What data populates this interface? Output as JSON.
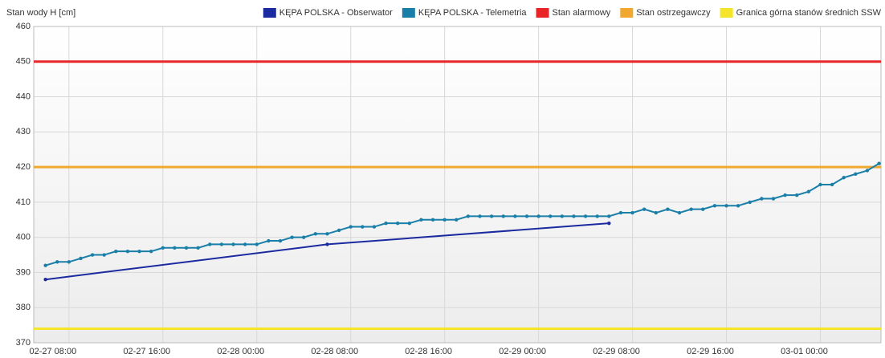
{
  "chart_data": {
    "type": "line",
    "y_label": "Stan wody H [cm]",
    "ylim": [
      370,
      460
    ],
    "yticks": [
      370,
      380,
      390,
      400,
      410,
      420,
      430,
      440,
      450,
      460
    ],
    "xlim": [
      "02-27 05:00",
      "03-01 05:10"
    ],
    "xticks": [
      "02-27 08:00",
      "02-27 16:00",
      "02-28 00:00",
      "02-28 08:00",
      "02-28 16:00",
      "02-29 00:00",
      "02-29 08:00",
      "02-29 16:00",
      "03-01 00:00"
    ],
    "grid": true,
    "legend": "top-right",
    "series": [
      {
        "name": "KĘPA POLSKA - Obserwator",
        "color": "#1c2aa0",
        "x": [
          "02-27 06:00",
          "02-28 06:00",
          "02-29 06:00"
        ],
        "values": [
          388,
          398,
          404
        ]
      },
      {
        "name": "KĘPA POLSKA - Telemetria",
        "color": "#1a7fa8",
        "x": [
          "02-27 06:00",
          "02-27 07:00",
          "02-27 08:00",
          "02-27 09:00",
          "02-27 10:00",
          "02-27 11:00",
          "02-27 12:00",
          "02-27 13:00",
          "02-27 14:00",
          "02-27 15:00",
          "02-27 16:00",
          "02-27 17:00",
          "02-27 18:00",
          "02-27 19:00",
          "02-27 20:00",
          "02-27 21:00",
          "02-27 22:00",
          "02-27 23:00",
          "02-28 00:00",
          "02-28 01:00",
          "02-28 02:00",
          "02-28 03:00",
          "02-28 04:00",
          "02-28 05:00",
          "02-28 06:00",
          "02-28 07:00",
          "02-28 08:00",
          "02-28 09:00",
          "02-28 10:00",
          "02-28 11:00",
          "02-28 12:00",
          "02-28 13:00",
          "02-28 14:00",
          "02-28 15:00",
          "02-28 16:00",
          "02-28 17:00",
          "02-28 18:00",
          "02-28 19:00",
          "02-28 20:00",
          "02-28 21:00",
          "02-28 22:00",
          "02-28 23:00",
          "02-29 00:00",
          "02-29 01:00",
          "02-29 02:00",
          "02-29 03:00",
          "02-29 04:00",
          "02-29 05:00",
          "02-29 06:00",
          "02-29 07:00",
          "02-29 08:00",
          "02-29 09:00",
          "02-29 10:00",
          "02-29 11:00",
          "02-29 12:00",
          "02-29 13:00",
          "02-29 14:00",
          "02-29 15:00",
          "02-29 16:00",
          "02-29 17:00",
          "02-29 18:00",
          "02-29 19:00",
          "02-29 20:00",
          "02-29 21:00",
          "02-29 22:00",
          "02-29 23:00",
          "03-01 00:00",
          "03-01 01:00",
          "03-01 02:00",
          "03-01 03:00",
          "03-01 04:00",
          "03-01 05:00"
        ],
        "values": [
          392,
          393,
          393,
          394,
          395,
          395,
          396,
          396,
          396,
          396,
          397,
          397,
          397,
          397,
          398,
          398,
          398,
          398,
          398,
          399,
          399,
          400,
          400,
          401,
          401,
          402,
          403,
          403,
          403,
          404,
          404,
          404,
          405,
          405,
          405,
          405,
          406,
          406,
          406,
          406,
          406,
          406,
          406,
          406,
          406,
          406,
          406,
          406,
          406,
          407,
          407,
          408,
          407,
          408,
          407,
          408,
          408,
          409,
          409,
          409,
          410,
          411,
          411,
          412,
          412,
          413,
          415,
          415,
          417,
          418,
          419,
          421
        ]
      }
    ],
    "thresholds": [
      {
        "name": "Stan alarmowy",
        "color": "#e8262a",
        "value": 450
      },
      {
        "name": "Stan ostrzegawczy",
        "color": "#f0a830",
        "value": 420
      },
      {
        "name": "Granica górna stanów średnich SSW",
        "color": "#f5e52a",
        "value": 374
      }
    ]
  }
}
